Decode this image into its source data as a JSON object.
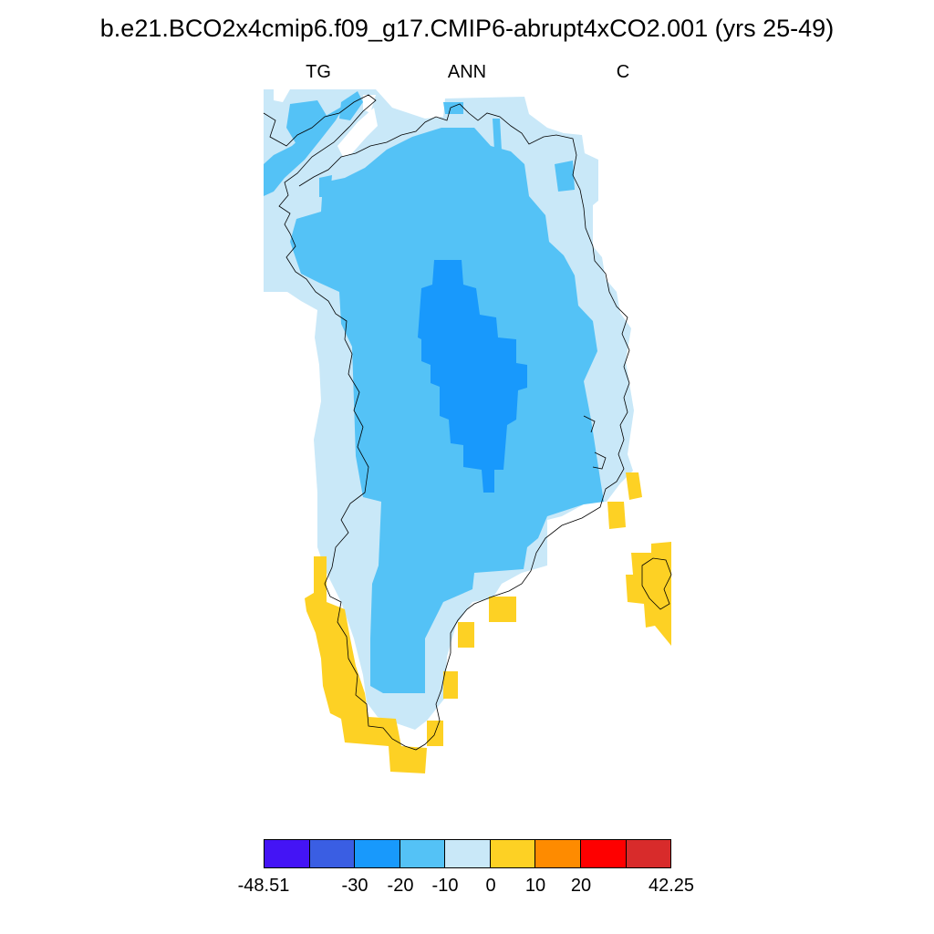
{
  "title": "b.e21.BCO2x4cmip6.f09_g17.CMIP6-abrupt4xCO2.001 (yrs 25-49)",
  "subtitles": {
    "left": "TG",
    "center": "ANN",
    "right": "C"
  },
  "colorbar": {
    "colors": [
      "#4414f5",
      "#3a5ee3",
      "#1899fc",
      "#54c2f6",
      "#c9e8f8",
      "#fdd124",
      "#fe8b00",
      "#fe0000",
      "#d82b2b"
    ],
    "labels": [
      "-48.51",
      "-30",
      "-20",
      "-10",
      "0",
      "10",
      "20",
      "42.25"
    ]
  },
  "legend_colors": {
    "lt_minus20": "#1899fc",
    "minus20_minus10": "#54c2f6",
    "minus10_0": "#c9e8f8",
    "0_10": "#fdd124"
  }
}
